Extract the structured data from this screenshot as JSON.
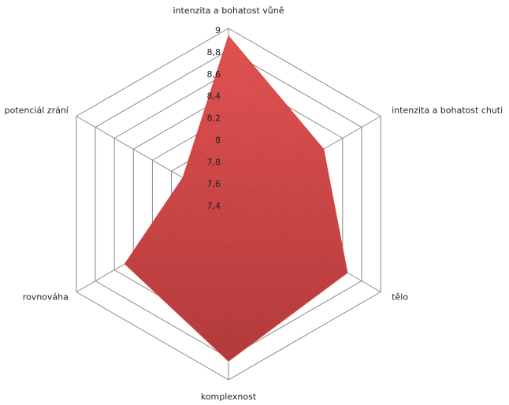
{
  "chart_data": {
    "type": "radar",
    "categories": [
      "intenzita a bohatost vůně",
      "intenzita a bohatost chuti",
      "tělo",
      "komplexnost",
      "rovnováha",
      "potenciál zrání"
    ],
    "values": [
      8.93,
      8.4,
      8.65,
      8.83,
      8.49,
      7.88
    ],
    "color": "#d64545",
    "ylim": [
      7.4,
      9
    ],
    "yticks": [
      {
        "value": 7.4,
        "label": "7,4"
      },
      {
        "value": 7.6,
        "label": "7,6"
      },
      {
        "value": 7.8,
        "label": "7,8"
      },
      8,
      {
        "value": 8.2,
        "label": "8,2"
      },
      {
        "value": 8.4,
        "label": "8,4"
      },
      {
        "value": 8.6,
        "label": "8,6"
      },
      {
        "value": 8.8,
        "label": "8,8"
      },
      9
    ],
    "grid": true
  }
}
